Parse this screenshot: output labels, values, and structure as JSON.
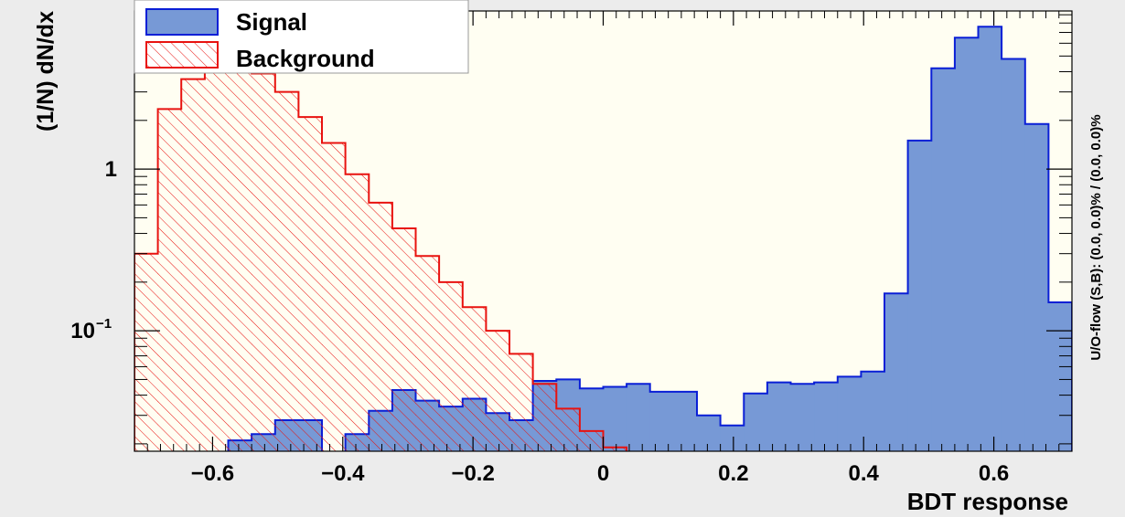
{
  "chart_data": {
    "type": "histogram",
    "y_scale": "log",
    "xlabel": "BDT response",
    "ylabel": "(1/N) dN/dx",
    "right_label": "U/O-flow (S,B): (0.0, 0.0)% / (0.0, 0.0)%",
    "xlim": [
      -0.72,
      0.72
    ],
    "ylim": [
      0.018,
      9.5
    ],
    "x_ticks": [
      {
        "value": -0.6,
        "label": "−0.6"
      },
      {
        "value": -0.4,
        "label": "−0.4"
      },
      {
        "value": -0.2,
        "label": "−0.2"
      },
      {
        "value": 0,
        "label": "0"
      },
      {
        "value": 0.2,
        "label": "0.2"
      },
      {
        "value": 0.4,
        "label": "0.4"
      },
      {
        "value": 0.6,
        "label": "0.6"
      }
    ],
    "y_ticks": [
      {
        "value": 0.1,
        "label": "10",
        "sup": "−1"
      },
      {
        "value": 1,
        "label": "1",
        "sup": ""
      }
    ],
    "bin_edges": [
      -0.72,
      -0.684,
      -0.648,
      -0.612,
      -0.576,
      -0.54,
      -0.504,
      -0.468,
      -0.432,
      -0.396,
      -0.36,
      -0.324,
      -0.288,
      -0.252,
      -0.216,
      -0.18,
      -0.144,
      -0.108,
      -0.072,
      -0.036,
      0,
      0.036,
      0.072,
      0.108,
      0.144,
      0.18,
      0.216,
      0.252,
      0.288,
      0.324,
      0.36,
      0.396,
      0.432,
      0.468,
      0.504,
      0.54,
      0.576,
      0.612,
      0.648,
      0.684,
      0.72
    ],
    "legend": {
      "position": "top-left"
    },
    "series": [
      {
        "name": "Signal",
        "style": "filled",
        "fill": "#7799d6",
        "line": "#0a1fd6",
        "values": [
          0,
          0,
          0,
          0,
          0.021,
          0.023,
          0.028,
          0.028,
          0,
          0.023,
          0.032,
          0.043,
          0.037,
          0.034,
          0.038,
          0.031,
          0.028,
          0.049,
          0.05,
          0.044,
          0.045,
          0.047,
          0.042,
          0.042,
          0.03,
          0.026,
          0.041,
          0.048,
          0.047,
          0.048,
          0.052,
          0.056,
          0.17,
          1.5,
          4.2,
          6.5,
          7.6,
          4.8,
          1.9,
          0.15
        ]
      },
      {
        "name": "Background",
        "style": "hatched",
        "fill": "#ffffff",
        "line": "#e8120f",
        "values": [
          0.3,
          2.35,
          3.6,
          4.6,
          4.8,
          3.9,
          3.0,
          2.1,
          1.45,
          0.93,
          0.62,
          0.43,
          0.29,
          0.2,
          0.14,
          0.1,
          0.072,
          0.047,
          0.033,
          0.024,
          0.019,
          0.017,
          0.017,
          0.017,
          0.017,
          0.017,
          0.017,
          0.017,
          0.017,
          0.017,
          0.017,
          0.017,
          0.017,
          0.017,
          0.017,
          0.017,
          0.017,
          0.017,
          0.017,
          0.017
        ]
      }
    ]
  },
  "colors": {
    "page_background": "#ececec",
    "plot_background": "#fffef2",
    "axis": "#000000"
  }
}
